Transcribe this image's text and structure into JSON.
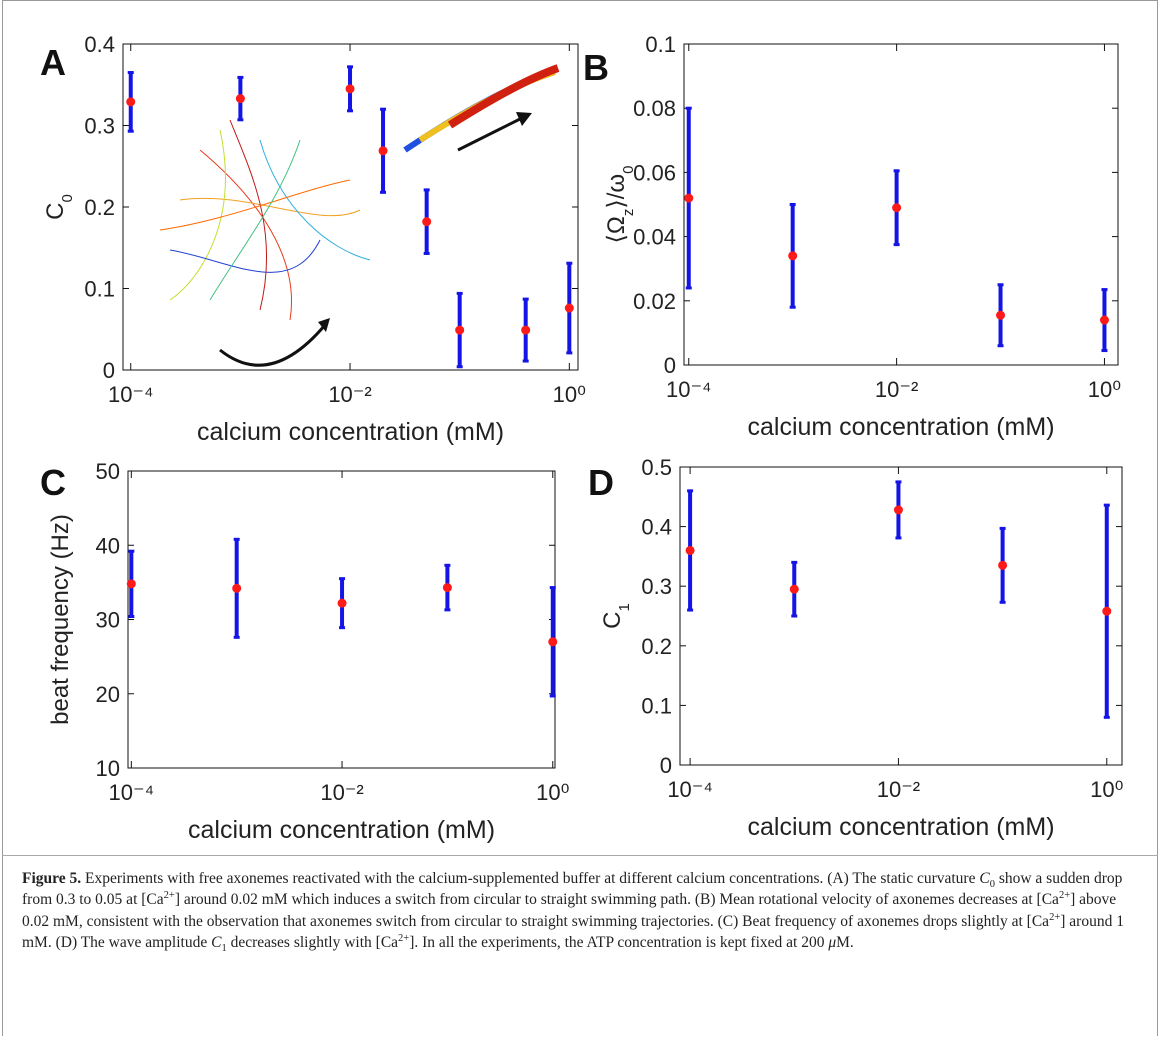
{
  "chart_data": [
    {
      "type": "scatter",
      "label": "A",
      "xlabel": "calcium concentration (mM)",
      "ylabel": [
        {
          "t": "C"
        },
        {
          "sub": "0"
        }
      ],
      "xscale": "log",
      "xlim": [
        8.5e-05,
        1.2
      ],
      "ylim": [
        0,
        0.4
      ],
      "xticks": [
        {
          "value": 0.0001,
          "label": "10⁻⁴"
        },
        {
          "value": 0.01,
          "label": "10⁻²"
        },
        {
          "value": 1,
          "label": "10⁰"
        }
      ],
      "yticks": [
        0,
        0.1,
        0.2,
        0.3,
        0.4
      ],
      "x": [
        0.0001,
        0.001,
        0.01,
        0.02,
        0.05,
        0.1,
        0.4,
        1
      ],
      "series": [
        {
          "color": "#1414e6",
          "marker_color": "#ff1a1a",
          "values": [
            0.329,
            0.333,
            0.345,
            0.269,
            0.182,
            0.049,
            0.049,
            0.076
          ],
          "errors": [
            0.036,
            0.026,
            0.027,
            0.051,
            0.039,
            0.045,
            0.038,
            0.055
          ]
        }
      ]
    },
    {
      "type": "scatter",
      "label": "B",
      "xlabel": "calcium concentration (mM)",
      "ylabel": [
        {
          "t": "⟨Ω"
        },
        {
          "sub": "z"
        },
        {
          "t": "⟩/ω"
        },
        {
          "sub": "0"
        }
      ],
      "xscale": "log",
      "xlim": [
        9e-05,
        1.35
      ],
      "ylim": [
        0,
        0.1
      ],
      "xticks": [
        {
          "value": 0.0001,
          "label": "10⁻⁴"
        },
        {
          "value": 0.01,
          "label": "10⁻²"
        },
        {
          "value": 1,
          "label": "10⁰"
        }
      ],
      "yticks": [
        0,
        0.02,
        0.04,
        0.06,
        0.08,
        0.1
      ],
      "x": [
        0.0001,
        0.001,
        0.01,
        0.1,
        1
      ],
      "series": [
        {
          "color": "#1414e6",
          "marker_color": "#ff1a1a",
          "values": [
            0.052,
            0.034,
            0.049,
            0.0155,
            0.014
          ],
          "errors": [
            0.028,
            0.016,
            0.0115,
            0.0095,
            0.0095
          ]
        }
      ]
    },
    {
      "type": "scatter",
      "label": "C",
      "xlabel": "calcium concentration (mM)",
      "ylabel": "beat frequency (Hz)",
      "xscale": "log",
      "xlim": [
        9.3e-05,
        1.05
      ],
      "ylim": [
        10,
        50
      ],
      "xticks": [
        {
          "value": 0.0001,
          "label": "10⁻⁴"
        },
        {
          "value": 0.01,
          "label": "10⁻²"
        },
        {
          "value": 1,
          "label": "10⁰"
        }
      ],
      "yticks": [
        10,
        20,
        30,
        40,
        50
      ],
      "x": [
        0.0001,
        0.001,
        0.01,
        0.1,
        1
      ],
      "series": [
        {
          "color": "#1414e6",
          "marker_color": "#ff1a1a",
          "values": [
            34.8,
            34.2,
            32.2,
            34.3,
            27.0
          ],
          "errors": [
            4.4,
            6.6,
            3.3,
            3.0,
            7.3
          ]
        }
      ]
    },
    {
      "type": "scatter",
      "label": "D",
      "xlabel": "calcium concentration (mM)",
      "ylabel": [
        {
          "t": "C"
        },
        {
          "sub": "1"
        }
      ],
      "xscale": "log",
      "xlim": [
        8e-05,
        1.4
      ],
      "ylim": [
        0,
        0.5
      ],
      "xticks": [
        {
          "value": 0.0001,
          "label": "10⁻⁴"
        },
        {
          "value": 0.01,
          "label": "10⁻²"
        },
        {
          "value": 1,
          "label": "10⁰"
        }
      ],
      "yticks": [
        0,
        0.1,
        0.2,
        0.3,
        0.4,
        0.5
      ],
      "x": [
        0.0001,
        0.001,
        0.01,
        0.1,
        1
      ],
      "series": [
        {
          "color": "#1414e6",
          "marker_color": "#ff1a1a",
          "values": [
            0.36,
            0.295,
            0.428,
            0.335,
            0.258
          ],
          "errors": [
            0.1,
            0.045,
            0.047,
            0.062,
            0.178
          ]
        }
      ]
    }
  ],
  "caption": [
    {
      "b": "Figure 5."
    },
    {
      "t": "  Experiments with free axonemes reactivated with the calcium-supplemented buffer at different calcium concentrations. (A) The static curvature "
    },
    {
      "i": "C"
    },
    {
      "sub": "0"
    },
    {
      "t": " show a sudden drop from 0.3 to 0.05 at [Ca"
    },
    {
      "sup": "2+"
    },
    {
      "t": "] around 0.02 mM which induces a switch from circular to straight swimming path. (B) Mean rotational velocity of axonemes decreases at [Ca"
    },
    {
      "sup": "2+"
    },
    {
      "t": "] above 0.02 mM, consistent with the observation that axonemes switch from circular to straight swimming trajectories. (C) Beat frequency of axonemes drops slightly at [Ca"
    },
    {
      "sup": "2+"
    },
    {
      "t": "] around 1 mM. (D) The wave amplitude "
    },
    {
      "i": "C"
    },
    {
      "sub": "1"
    },
    {
      "t": " decreases slightly with [Ca"
    },
    {
      "sup": "2+"
    },
    {
      "t": "]. In all the experiments, the ATP concentration is kept fixed at 200 "
    },
    {
      "i": "μ"
    },
    {
      "t": "M."
    }
  ]
}
